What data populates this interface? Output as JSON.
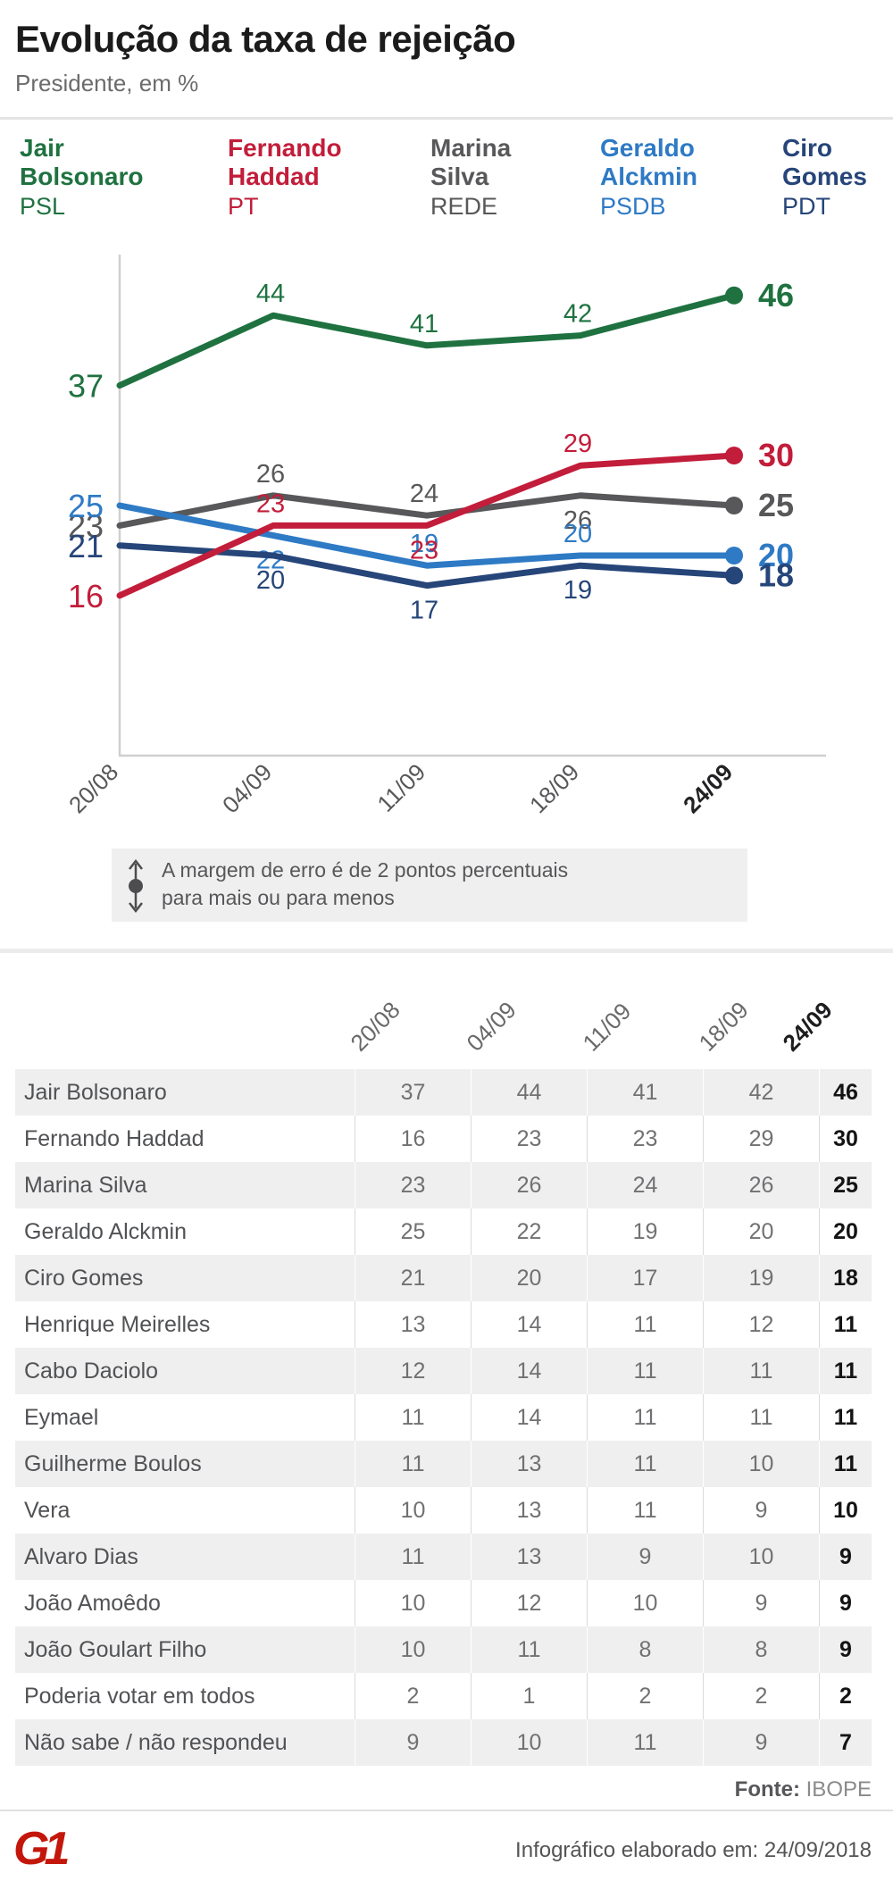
{
  "header": {
    "title": "Evolução da taxa de rejeição",
    "subtitle": "Presidente, em %"
  },
  "legend": [
    {
      "line1": "Jair",
      "line2": "Bolsonaro",
      "party": "PSL",
      "color": "#1f7240"
    },
    {
      "line1": "Fernando",
      "line2": "Haddad",
      "party": "PT",
      "color": "#c21d3a"
    },
    {
      "line1": "Marina",
      "line2": "Silva",
      "party": "REDE",
      "color": "#58585a"
    },
    {
      "line1": "Geraldo",
      "line2": "Alckmin",
      "party": "PSDB",
      "color": "#2e7ac5"
    },
    {
      "line1": "Ciro",
      "line2": "Gomes",
      "party": "PDT",
      "color": "#264579"
    }
  ],
  "chart_data": {
    "type": "line",
    "title": "Evolução da taxa de rejeição",
    "subtitle": "Presidente, em %",
    "x": [
      "20/08",
      "04/09",
      "11/09",
      "18/09",
      "24/09"
    ],
    "series": [
      {
        "name": "Jair Bolsonaro",
        "color": "#1f7240",
        "values": [
          37,
          44,
          41,
          42,
          46
        ],
        "label_pos": [
          "left",
          "above",
          "above",
          "above",
          "end"
        ]
      },
      {
        "name": "Marina Silva",
        "color": "#58585a",
        "values": [
          23,
          26,
          24,
          26,
          25
        ],
        "label_pos": [
          "left",
          "above",
          "above",
          "below",
          "end"
        ]
      },
      {
        "name": "Geraldo Alckmin",
        "color": "#2e7ac5",
        "values": [
          25,
          22,
          19,
          20,
          20
        ],
        "label_pos": [
          "left",
          "below",
          "above",
          "above",
          "end"
        ]
      },
      {
        "name": "Ciro Gomes",
        "color": "#264579",
        "values": [
          21,
          20,
          17,
          19,
          18
        ],
        "label_pos": [
          "left",
          "below",
          "below",
          "below",
          "end"
        ]
      },
      {
        "name": "Fernando Haddad",
        "color": "#c21d3a",
        "values": [
          16,
          23,
          23,
          29,
          30
        ],
        "label_pos": [
          "left",
          "above",
          "below",
          "above",
          "end"
        ]
      }
    ],
    "ylim": [
      0,
      50
    ],
    "grid": false,
    "legend_position": "top",
    "axis_color": "#cfcfcf"
  },
  "note": {
    "line1": "A margem de erro é de 2 pontos percentuais",
    "line2": "para mais ou para menos"
  },
  "table": {
    "date_headers": [
      "20/08",
      "04/09",
      "11/09",
      "18/09",
      "24/09"
    ],
    "rows": [
      {
        "name": "Jair Bolsonaro",
        "values": [
          37,
          44,
          41,
          42,
          46
        ]
      },
      {
        "name": "Fernando Haddad",
        "values": [
          16,
          23,
          23,
          29,
          30
        ]
      },
      {
        "name": "Marina Silva",
        "values": [
          23,
          26,
          24,
          26,
          25
        ]
      },
      {
        "name": "Geraldo Alckmin",
        "values": [
          25,
          22,
          19,
          20,
          20
        ]
      },
      {
        "name": "Ciro Gomes",
        "values": [
          21,
          20,
          17,
          19,
          18
        ]
      },
      {
        "name": "Henrique Meirelles",
        "values": [
          13,
          14,
          11,
          12,
          11
        ]
      },
      {
        "name": "Cabo Daciolo",
        "values": [
          12,
          14,
          11,
          11,
          11
        ]
      },
      {
        "name": "Eymael",
        "values": [
          11,
          14,
          11,
          11,
          11
        ]
      },
      {
        "name": "Guilherme Boulos",
        "values": [
          11,
          13,
          11,
          10,
          11
        ]
      },
      {
        "name": "Vera",
        "values": [
          10,
          13,
          11,
          9,
          10
        ]
      },
      {
        "name": "Alvaro Dias",
        "values": [
          11,
          13,
          9,
          10,
          9
        ]
      },
      {
        "name": "João Amoêdo",
        "values": [
          10,
          12,
          10,
          9,
          9
        ]
      },
      {
        "name": "João Goulart Filho",
        "values": [
          10,
          11,
          8,
          8,
          9
        ]
      },
      {
        "name": "Poderia votar em todos",
        "values": [
          2,
          1,
          2,
          2,
          2
        ]
      },
      {
        "name": "Não sabe / não respondeu",
        "values": [
          9,
          10,
          11,
          9,
          7
        ]
      }
    ]
  },
  "footer": {
    "source_label": "Fonte:",
    "source_value": "IBOPE",
    "logo_text": "G1",
    "elaborated": "Infográfico elaborado em: 24/09/2018"
  }
}
